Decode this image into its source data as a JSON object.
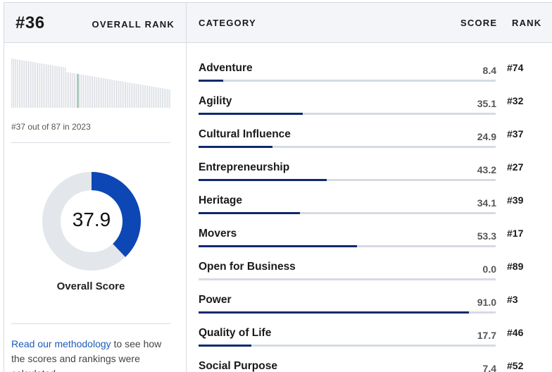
{
  "overall": {
    "rank": "#36",
    "rank_label": "OVERALL RANK",
    "history_note": "#37 out of 87 in 2023",
    "score": "37.9",
    "score_value": 37.9,
    "score_label": "Overall Score",
    "methodology_link": "Read our methodology",
    "methodology_text": " to see how the scores and rankings were calculated.",
    "colors": {
      "donut_fill": "#0d47b5",
      "donut_track": "#e3e6ea",
      "bar_fill": "#0d2a6b"
    }
  },
  "table": {
    "headers": {
      "category": "CATEGORY",
      "score": "SCORE",
      "rank": "RANK"
    },
    "rows": [
      {
        "name": "Adventure",
        "score": "8.4",
        "rank": "#74",
        "value": 8.4
      },
      {
        "name": "Agility",
        "score": "35.1",
        "rank": "#32",
        "value": 35.1
      },
      {
        "name": "Cultural Influence",
        "score": "24.9",
        "rank": "#37",
        "value": 24.9
      },
      {
        "name": "Entrepreneurship",
        "score": "43.2",
        "rank": "#27",
        "value": 43.2
      },
      {
        "name": "Heritage",
        "score": "34.1",
        "rank": "#39",
        "value": 34.1
      },
      {
        "name": "Movers",
        "score": "53.3",
        "rank": "#17",
        "value": 53.3
      },
      {
        "name": "Open for Business",
        "score": "0.0",
        "rank": "#89",
        "value": 0.0
      },
      {
        "name": "Power",
        "score": "91.0",
        "rank": "#3",
        "value": 91.0
      },
      {
        "name": "Quality of Life",
        "score": "17.7",
        "rank": "#46",
        "value": 17.7
      },
      {
        "name": "Social Purpose",
        "score": "7.4",
        "rank": "#52",
        "value": 7.4
      }
    ]
  }
}
